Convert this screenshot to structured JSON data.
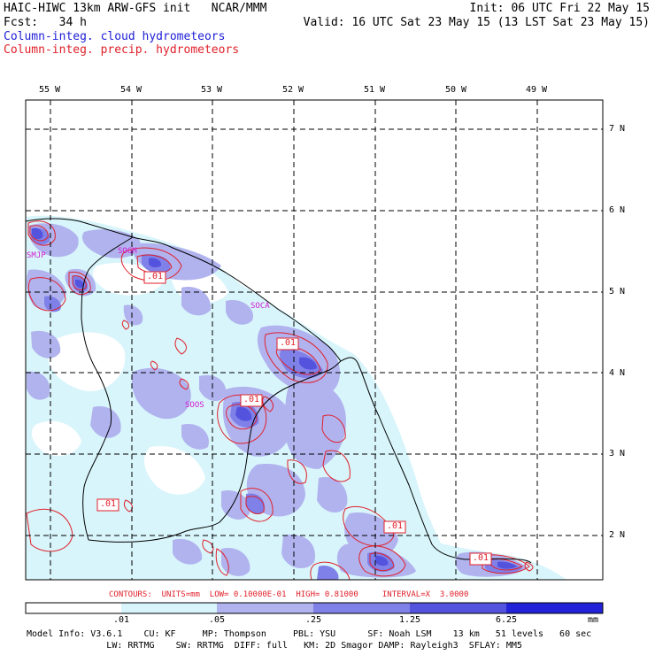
{
  "header": {
    "line1_left": "HAIC-HIWC 13km ARW-GFS init   NCAR/MMM",
    "line1_right": "Init: 06 UTC Fri 22 May 15",
    "line2_left": "Fcst:   34 h",
    "line2_right": "Valid: 16 UTC Sat 23 May 15 (13 LST Sat 23 May 15)",
    "legend_cloud": "Column-integ. cloud hydrometeors",
    "legend_precip": "Column-integ. precip. hydrometeors"
  },
  "colors": {
    "cloud_text": "#1d1dd6",
    "precip_text": "#e0202a",
    "fill_lvl1": "#d8f5fb",
    "fill_lvl2": "#b1b3ef",
    "fill_lvl3": "#7f80e8",
    "fill_lvl4": "#5353de",
    "fill_lvl5": "#2222d8",
    "contour": "#e0202a",
    "station": "#d21bd2"
  },
  "map": {
    "lon_labels": [
      "55 W",
      "54 W",
      "53 W",
      "52 W",
      "51 W",
      "50 W",
      "49 W"
    ],
    "lat_labels": [
      "7 N",
      "6 N",
      "5 N",
      "4 N",
      "3 N",
      "2 N"
    ],
    "stations": [
      "SMJP",
      "SOGM",
      "SOCA",
      "SOOS"
    ],
    "contour_label": ".01"
  },
  "contour_info": "CONTOURS:  UNITS=mm  LOW= 0.10000E-01  HIGH= 0.81000     INTERVAL=X  3.0000",
  "colorbar": {
    "ticks": [
      ".01",
      ".05",
      ".25",
      "1.25",
      "6.25"
    ],
    "unit": "mm"
  },
  "footer": {
    "line1": "Model Info: V3.6.1    CU: KF     MP: Thompson     PBL: YSU      SF: Noah LSM    13 km   51 levels   60 sec",
    "line2": "               LW: RRTMG    SW: RRTMG  DIFF: full   KM: 2D Smagor DAMP: Rayleigh3  SFLAY: MM5"
  }
}
